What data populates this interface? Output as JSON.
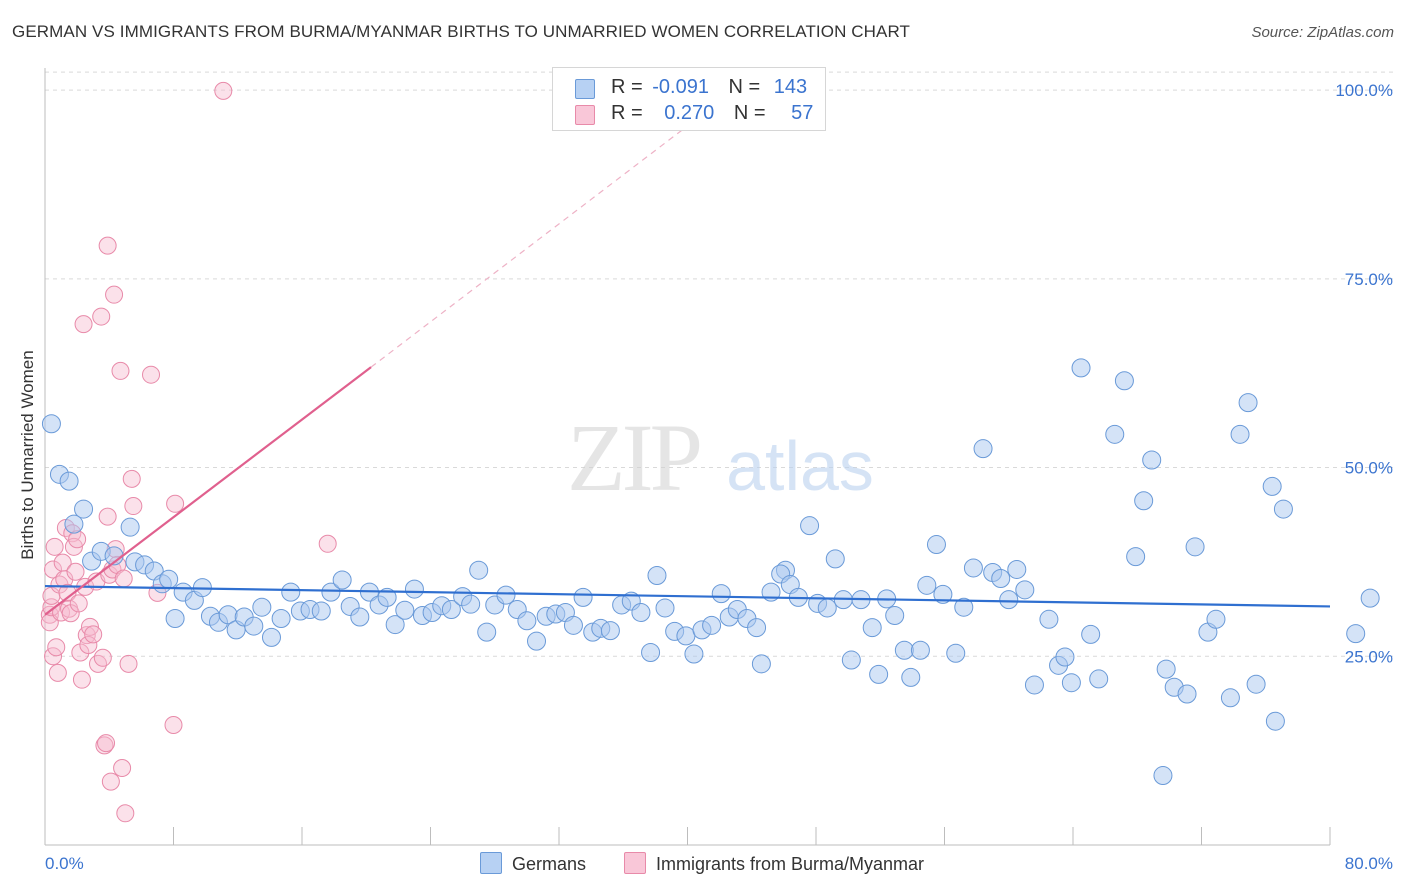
{
  "title": "GERMAN VS IMMIGRANTS FROM BURMA/MYANMAR BIRTHS TO UNMARRIED WOMEN CORRELATION CHART",
  "source": "Source: ZipAtlas.com",
  "watermark": {
    "zip": "ZIP",
    "atlas": "atlas"
  },
  "legend": {
    "rows": [
      {
        "r_label": "R =",
        "r_value": "-0.091",
        "n_label": "N =",
        "n_value": "143"
      },
      {
        "r_label": "R =",
        "r_value": "0.270",
        "n_label": "N =",
        "n_value": "57"
      }
    ]
  },
  "bottom_legend": {
    "germans": "Germans",
    "immigrants": "Immigrants from Burma/Myanmar"
  },
  "colors": {
    "blue_fill": "#a9c8ef",
    "blue_stroke": "#6a9ad8",
    "blue_line": "#2f6fd0",
    "pink_fill": "#f6bcd0",
    "pink_stroke": "#e88aa9",
    "pink_line": "#e0608e",
    "tick_text": "#3b74cf",
    "grid": "#d9d9d9"
  },
  "chart_data": {
    "type": "scatter",
    "title": "GERMAN VS IMMIGRANTS FROM BURMA/MYANMAR BIRTHS TO UNMARRIED WOMEN CORRELATION CHART",
    "xlabel": "",
    "ylabel": "Births to Unmarried Women",
    "xlim": [
      0,
      80
    ],
    "ylim": [
      0,
      102
    ],
    "x_tick_labels": [
      "0.0%",
      "80.0%"
    ],
    "y_ticks": [
      25,
      50,
      75,
      100
    ],
    "y_tick_labels": [
      "25.0%",
      "50.0%",
      "75.0%",
      "100.0%"
    ],
    "series": [
      {
        "name": "Germans",
        "r": -0.091,
        "n": 143,
        "trend": {
          "x": [
            0,
            80
          ],
          "y": [
            34.3,
            31.6
          ]
        },
        "points": [
          [
            0.4,
            55.8
          ],
          [
            0.9,
            49.1
          ],
          [
            1.5,
            48.2
          ],
          [
            1.8,
            42.5
          ],
          [
            2.4,
            44.5
          ],
          [
            2.9,
            37.6
          ],
          [
            3.5,
            38.9
          ],
          [
            4.3,
            38.3
          ],
          [
            5.3,
            42.1
          ],
          [
            5.6,
            37.5
          ],
          [
            6.2,
            37.1
          ],
          [
            6.8,
            36.3
          ],
          [
            7.3,
            34.6
          ],
          [
            7.7,
            35.2
          ],
          [
            8.1,
            30.0
          ],
          [
            8.6,
            33.5
          ],
          [
            9.3,
            32.4
          ],
          [
            9.8,
            34.1
          ],
          [
            10.3,
            30.3
          ],
          [
            10.8,
            29.5
          ],
          [
            11.4,
            30.5
          ],
          [
            11.9,
            28.5
          ],
          [
            12.4,
            30.2
          ],
          [
            13.0,
            29.0
          ],
          [
            13.5,
            31.5
          ],
          [
            14.1,
            27.5
          ],
          [
            14.7,
            30.0
          ],
          [
            15.3,
            33.5
          ],
          [
            15.9,
            31.0
          ],
          [
            16.5,
            31.2
          ],
          [
            17.2,
            31.0
          ],
          [
            17.8,
            33.5
          ],
          [
            18.5,
            35.1
          ],
          [
            19.0,
            31.6
          ],
          [
            19.6,
            30.2
          ],
          [
            20.2,
            33.5
          ],
          [
            20.8,
            31.8
          ],
          [
            21.3,
            32.8
          ],
          [
            21.8,
            29.2
          ],
          [
            22.4,
            31.1
          ],
          [
            23.0,
            33.9
          ],
          [
            23.5,
            30.4
          ],
          [
            24.1,
            30.8
          ],
          [
            24.7,
            31.7
          ],
          [
            25.3,
            31.2
          ],
          [
            26.0,
            32.9
          ],
          [
            26.5,
            31.9
          ],
          [
            27.0,
            36.4
          ],
          [
            27.5,
            28.2
          ],
          [
            28.0,
            31.8
          ],
          [
            28.7,
            33.1
          ],
          [
            29.4,
            31.2
          ],
          [
            30.0,
            29.7
          ],
          [
            30.6,
            27.0
          ],
          [
            31.2,
            30.3
          ],
          [
            31.8,
            30.6
          ],
          [
            32.4,
            30.8
          ],
          [
            32.9,
            29.1
          ],
          [
            33.5,
            32.8
          ],
          [
            34.1,
            28.2
          ],
          [
            34.6,
            28.7
          ],
          [
            35.2,
            28.4
          ],
          [
            35.9,
            31.8
          ],
          [
            36.5,
            32.3
          ],
          [
            37.1,
            30.8
          ],
          [
            37.7,
            25.5
          ],
          [
            38.1,
            35.7
          ],
          [
            38.6,
            31.4
          ],
          [
            39.2,
            28.3
          ],
          [
            39.9,
            27.7
          ],
          [
            40.4,
            25.3
          ],
          [
            40.9,
            28.5
          ],
          [
            41.5,
            29.1
          ],
          [
            42.1,
            33.3
          ],
          [
            42.6,
            30.2
          ],
          [
            43.1,
            31.2
          ],
          [
            43.7,
            30.0
          ],
          [
            44.3,
            28.8
          ],
          [
            44.6,
            24.0
          ],
          [
            45.2,
            33.5
          ],
          [
            46.1,
            36.4
          ],
          [
            45.8,
            35.9
          ],
          [
            46.4,
            34.5
          ],
          [
            46.9,
            32.8
          ],
          [
            47.6,
            42.3
          ],
          [
            48.1,
            32.0
          ],
          [
            48.7,
            31.4
          ],
          [
            49.2,
            37.9
          ],
          [
            49.7,
            32.5
          ],
          [
            50.2,
            24.5
          ],
          [
            50.8,
            32.5
          ],
          [
            51.5,
            28.8
          ],
          [
            51.9,
            22.6
          ],
          [
            52.4,
            32.6
          ],
          [
            52.9,
            30.4
          ],
          [
            53.5,
            25.8
          ],
          [
            53.9,
            22.2
          ],
          [
            54.5,
            25.8
          ],
          [
            54.9,
            34.4
          ],
          [
            55.5,
            39.8
          ],
          [
            55.9,
            33.2
          ],
          [
            56.7,
            25.4
          ],
          [
            57.2,
            31.5
          ],
          [
            57.8,
            36.7
          ],
          [
            58.4,
            52.5
          ],
          [
            59.0,
            36.1
          ],
          [
            59.5,
            35.3
          ],
          [
            60.0,
            32.5
          ],
          [
            60.5,
            36.5
          ],
          [
            61.0,
            33.8
          ],
          [
            61.6,
            21.2
          ],
          [
            62.5,
            29.9
          ],
          [
            63.1,
            23.8
          ],
          [
            63.5,
            24.9
          ],
          [
            63.9,
            21.5
          ],
          [
            64.5,
            63.2
          ],
          [
            65.1,
            27.9
          ],
          [
            65.6,
            22.0
          ],
          [
            66.6,
            54.4
          ],
          [
            67.2,
            61.5
          ],
          [
            67.9,
            38.2
          ],
          [
            68.4,
            45.6
          ],
          [
            68.9,
            51.0
          ],
          [
            69.6,
            9.2
          ],
          [
            69.8,
            23.3
          ],
          [
            70.3,
            20.9
          ],
          [
            71.1,
            20.0
          ],
          [
            71.6,
            39.5
          ],
          [
            72.4,
            28.2
          ],
          [
            72.9,
            29.9
          ],
          [
            73.8,
            19.5
          ],
          [
            74.4,
            54.4
          ],
          [
            74.9,
            58.6
          ],
          [
            75.4,
            21.3
          ],
          [
            76.4,
            47.5
          ],
          [
            76.6,
            16.4
          ],
          [
            77.1,
            44.5
          ],
          [
            82.5,
            32.7
          ],
          [
            81.6,
            28.0
          ]
        ]
      },
      {
        "name": "Immigrants from Burma/Myanmar",
        "r": 0.27,
        "n": 57,
        "trend": {
          "x": [
            0,
            20.3
          ],
          "y": [
            30.5,
            63.3
          ]
        },
        "trend_dashed": {
          "x": [
            20.3,
            42
          ],
          "y": [
            63.3,
            98.5
          ]
        },
        "points": [
          [
            0.3,
            30.5
          ],
          [
            0.3,
            29.5
          ],
          [
            0.4,
            31.5
          ],
          [
            0.4,
            33.0
          ],
          [
            0.5,
            36.5
          ],
          [
            0.6,
            39.5
          ],
          [
            0.5,
            25.0
          ],
          [
            0.7,
            26.2
          ],
          [
            0.8,
            22.8
          ],
          [
            0.9,
            34.5
          ],
          [
            1.0,
            30.8
          ],
          [
            1.1,
            37.4
          ],
          [
            1.2,
            35.2
          ],
          [
            1.3,
            42.0
          ],
          [
            1.4,
            33.4
          ],
          [
            1.5,
            31.3
          ],
          [
            1.6,
            30.7
          ],
          [
            1.7,
            41.3
          ],
          [
            1.8,
            39.5
          ],
          [
            1.9,
            36.2
          ],
          [
            2.0,
            40.5
          ],
          [
            2.1,
            32.0
          ],
          [
            2.2,
            25.5
          ],
          [
            2.3,
            21.9
          ],
          [
            2.4,
            69.0
          ],
          [
            2.5,
            34.2
          ],
          [
            2.6,
            27.8
          ],
          [
            2.7,
            26.5
          ],
          [
            2.8,
            28.9
          ],
          [
            3.0,
            27.9
          ],
          [
            3.2,
            34.9
          ],
          [
            3.3,
            24.0
          ],
          [
            3.5,
            70.0
          ],
          [
            3.6,
            24.8
          ],
          [
            3.7,
            13.2
          ],
          [
            3.8,
            13.5
          ],
          [
            3.9,
            79.4
          ],
          [
            3.9,
            43.5
          ],
          [
            4.0,
            35.8
          ],
          [
            4.1,
            8.4
          ],
          [
            4.2,
            36.5
          ],
          [
            4.3,
            72.9
          ],
          [
            4.4,
            39.2
          ],
          [
            4.5,
            37.1
          ],
          [
            4.7,
            62.8
          ],
          [
            4.8,
            10.2
          ],
          [
            4.9,
            35.3
          ],
          [
            5.0,
            4.2
          ],
          [
            5.2,
            24.0
          ],
          [
            5.4,
            48.5
          ],
          [
            5.5,
            44.9
          ],
          [
            6.6,
            62.3
          ],
          [
            7.0,
            33.4
          ],
          [
            8.0,
            15.9
          ],
          [
            8.1,
            45.2
          ],
          [
            17.6,
            39.9
          ],
          [
            11.1,
            99.9
          ]
        ]
      }
    ]
  }
}
